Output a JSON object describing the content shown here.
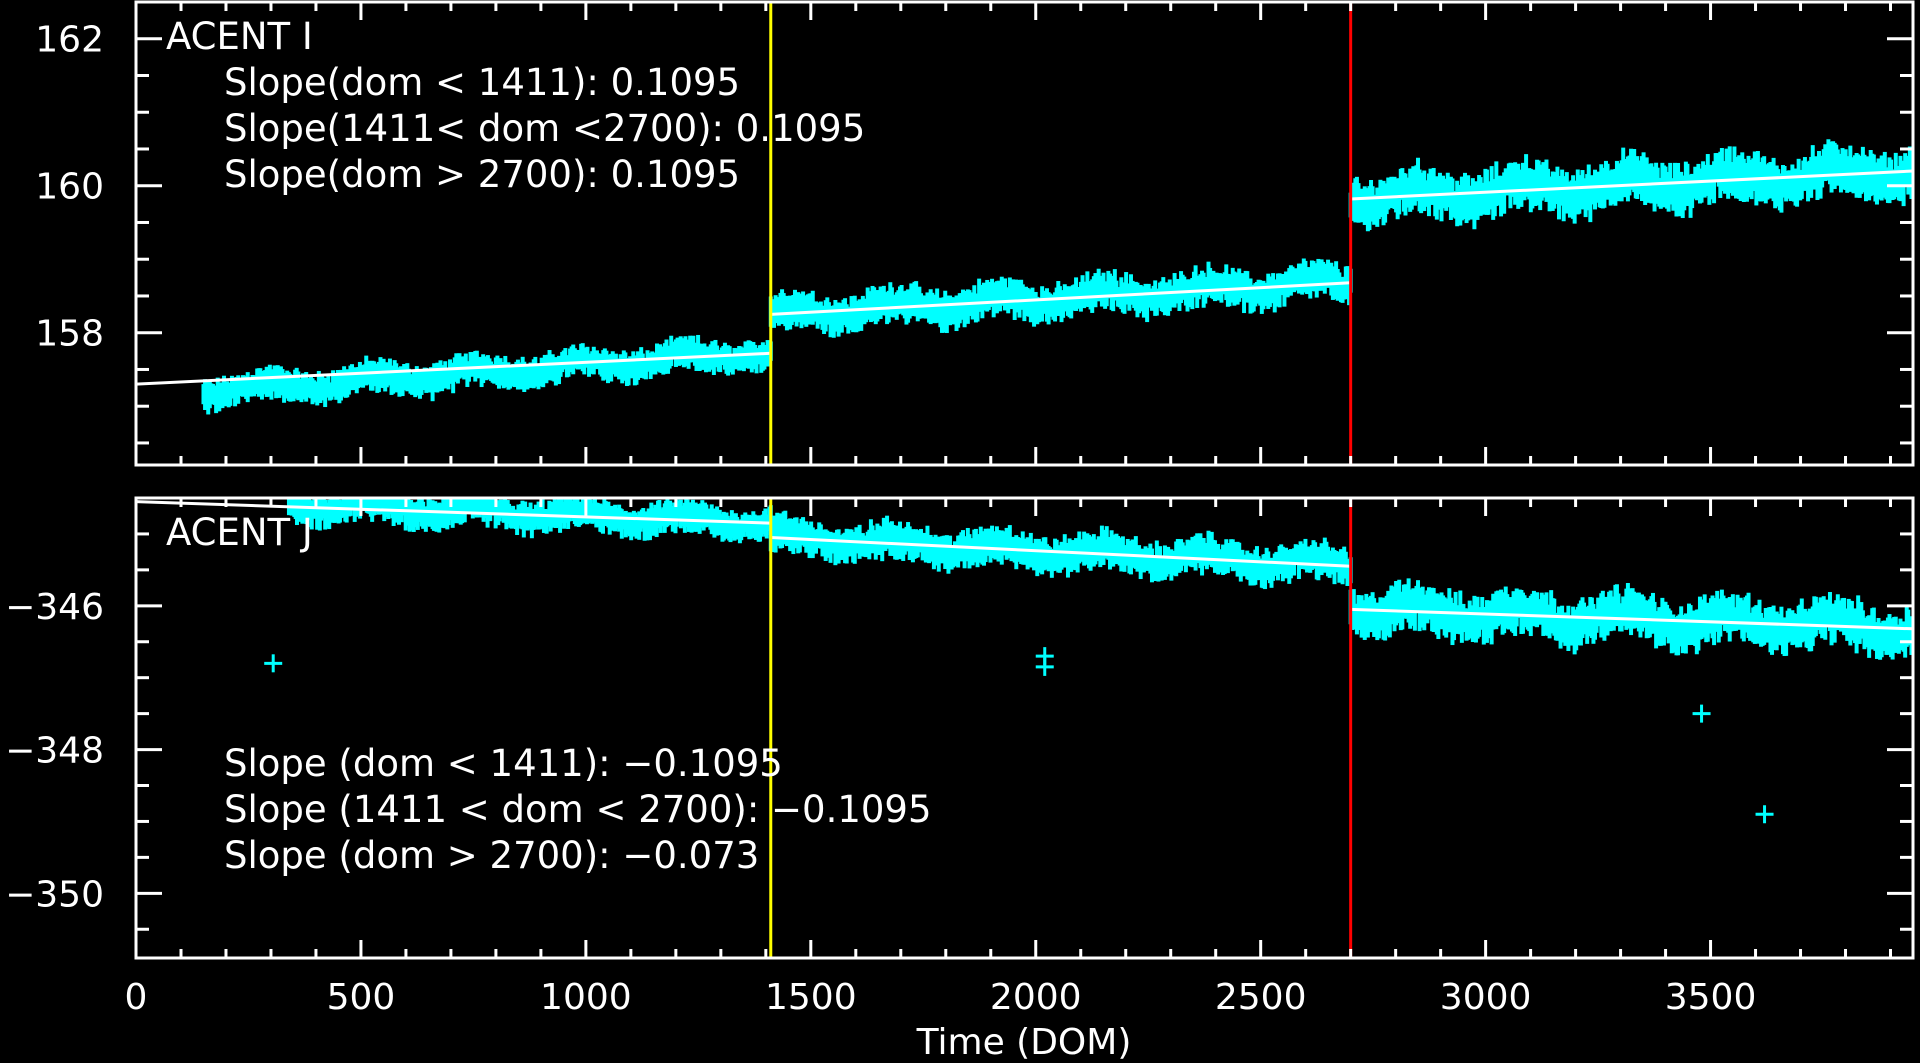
{
  "chart_data": {
    "type": "scatter",
    "xlabel": "Time (DOM)",
    "xlim": [
      0,
      3950
    ],
    "x_ticks": [
      0,
      500,
      1000,
      1500,
      2000,
      2500,
      3000,
      3500
    ],
    "x_tick_labels": [
      "0",
      "500",
      "1000",
      "1500",
      "2000",
      "2500",
      "3000",
      "3500"
    ],
    "vertical_markers": [
      {
        "x": 1411,
        "color": "#ffff00"
      },
      {
        "x": 2700,
        "color": "#ff0000"
      }
    ],
    "point_color": "#00ffff",
    "fit_color": "#ffffff",
    "panels": [
      {
        "title": "ACENT I",
        "ylim": [
          156.2,
          162.5
        ],
        "y_ticks": [
          158,
          160,
          162
        ],
        "y_tick_labels": [
          "158",
          "160",
          "162"
        ],
        "annotations": [
          "Slope(dom < 1411): 0.1095",
          "Slope(1411< dom <2700): 0.1095",
          "Slope(dom > 2700): 0.1095"
        ],
        "fit_segments": [
          {
            "x": [
              0,
              1411
            ],
            "y": [
              157.3,
              157.72
            ]
          },
          {
            "x": [
              1411,
              2700
            ],
            "y": [
              158.25,
              158.68
            ]
          },
          {
            "x": [
              2700,
              3950
            ],
            "y": [
              159.82,
              160.2
            ]
          }
        ],
        "scatter_segments": [
          {
            "x": [
              150,
              1411
            ],
            "y": [
              157.2,
              157.72
            ],
            "spread": 0.3
          },
          {
            "x": [
              1411,
              2700
            ],
            "y": [
              158.25,
              158.68
            ],
            "spread": 0.35
          },
          {
            "x": [
              2700,
              3950
            ],
            "y": [
              159.82,
              160.2
            ],
            "spread": 0.45
          }
        ],
        "outliers": []
      },
      {
        "title": "ACENT J",
        "ylim": [
          -350.9,
          -344.5
        ],
        "y_ticks": [
          -350,
          -348,
          -346
        ],
        "y_tick_labels": [
          "−350",
          "−348",
          "−346"
        ],
        "annotations": [
          "Slope (dom < 1411): −0.1095",
          "Slope (1411 < dom < 2700): −0.1095",
          "Slope (dom > 2700): −0.073"
        ],
        "fit_segments": [
          {
            "x": [
              0,
              1411
            ],
            "y": [
              -344.55,
              -344.85
            ]
          },
          {
            "x": [
              1411,
              2700
            ],
            "y": [
              -345.05,
              -345.45
            ]
          },
          {
            "x": [
              2700,
              3950
            ],
            "y": [
              -346.05,
              -346.32
            ]
          }
        ],
        "scatter_segments": [
          {
            "x": [
              340,
              1411
            ],
            "y": [
              -344.6,
              -344.85
            ],
            "spread": 0.3
          },
          {
            "x": [
              1411,
              2700
            ],
            "y": [
              -345.05,
              -345.45
            ],
            "spread": 0.35
          },
          {
            "x": [
              2700,
              3950
            ],
            "y": [
              -346.05,
              -346.32
            ],
            "spread": 0.45
          }
        ],
        "outliers": [
          {
            "x": 305,
            "y": -346.8
          },
          {
            "x": 2020,
            "y": -346.7
          },
          {
            "x": 2020,
            "y": -346.85
          },
          {
            "x": 3480,
            "y": -347.5
          },
          {
            "x": 3620,
            "y": -348.9
          }
        ]
      }
    ]
  }
}
